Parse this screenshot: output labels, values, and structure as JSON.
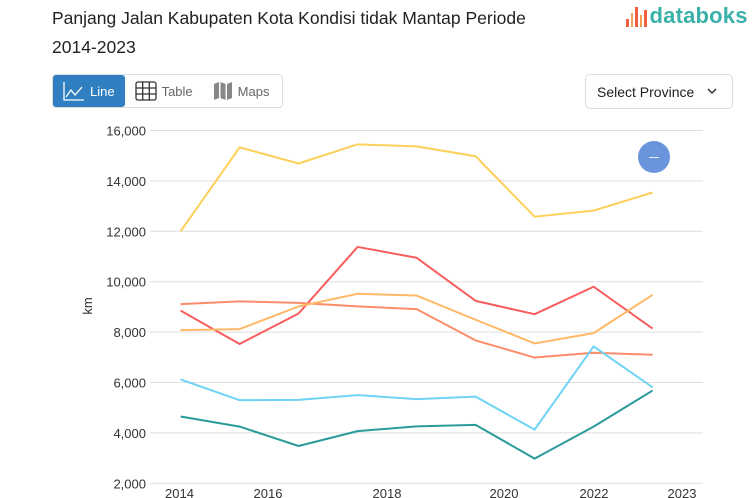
{
  "title": "Panjang Jalan Kabupaten Kota Kondisi tidak Mantap Periode 2014-2023",
  "logo": {
    "text": "databoks",
    "colors": {
      "bars": "#f0603f",
      "text": "#3ab1a8"
    }
  },
  "tabs": [
    {
      "label": "Line",
      "icon": "line-chart-icon",
      "active": true
    },
    {
      "label": "Table",
      "icon": "table-grid-icon",
      "active": false
    },
    {
      "label": "Maps",
      "icon": "map-icon",
      "active": false
    }
  ],
  "province_select": {
    "label": "Select Province",
    "icon": "chevron-down-icon"
  },
  "zoom_button": {
    "icon": "minus-icon",
    "color": "#6a95dc"
  },
  "accent_color": "#2f7fc1",
  "chart_data": {
    "type": "line",
    "title": "",
    "xlabel": "",
    "ylabel": "km",
    "ylim": [
      2000,
      16000
    ],
    "yticks": [
      "2,000",
      "4,000",
      "6,000",
      "8,000",
      "10,000",
      "12,000",
      "14,000",
      "16,000"
    ],
    "ytick_values": [
      2000,
      4000,
      6000,
      8000,
      10000,
      12000,
      14000,
      16000
    ],
    "xticks": [
      "2014",
      "2016",
      "2018",
      "2020",
      "2022",
      "2023"
    ],
    "x": [
      "2014",
      "2015",
      "2016",
      "2017",
      "2018",
      "2019",
      "2020",
      "2021",
      "2022"
    ],
    "grid": true,
    "legend": "none",
    "series": [
      {
        "color": "#fdd05a",
        "values": [
          12000,
          15330,
          14690,
          15450,
          15370,
          14980,
          12580,
          12820,
          13540
        ]
      },
      {
        "color": "#f95d5d",
        "values": [
          8850,
          7530,
          8740,
          11380,
          10950,
          9240,
          8710,
          9800,
          8140
        ]
      },
      {
        "color": "#fd8c6a",
        "values": [
          9110,
          9220,
          9160,
          9020,
          8910,
          7670,
          6990,
          7180,
          7100
        ]
      },
      {
        "color": "#ffb866",
        "values": [
          8080,
          8120,
          9020,
          9520,
          9450,
          8490,
          7550,
          7960,
          9480
        ]
      },
      {
        "color": "#6fd3f5",
        "values": [
          6120,
          5300,
          5310,
          5500,
          5340,
          5440,
          4130,
          7430,
          5810
        ]
      },
      {
        "color": "#2b9a9b",
        "values": [
          4650,
          4250,
          3480,
          4070,
          4260,
          4320,
          2980,
          4250,
          5680
        ]
      }
    ]
  }
}
